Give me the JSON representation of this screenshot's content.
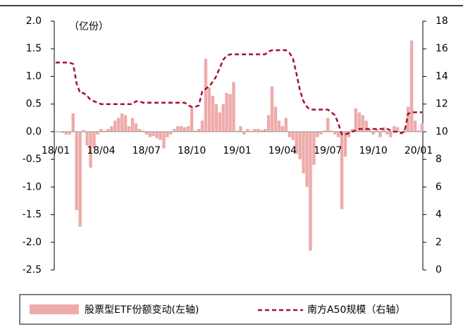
{
  "chart_data": {
    "type": "bar_line",
    "annotation": "（亿份）",
    "categories": [
      "18/01",
      null,
      null,
      null,
      null,
      null,
      null,
      null,
      null,
      null,
      null,
      null,
      null,
      "18/04",
      null,
      null,
      null,
      null,
      null,
      null,
      null,
      null,
      null,
      null,
      null,
      null,
      "18/07",
      null,
      null,
      null,
      null,
      null,
      null,
      null,
      null,
      null,
      null,
      null,
      null,
      "18/10",
      null,
      null,
      null,
      null,
      null,
      null,
      null,
      null,
      null,
      null,
      null,
      null,
      "19/01",
      null,
      null,
      null,
      null,
      null,
      null,
      null,
      null,
      null,
      null,
      null,
      null,
      "19/04",
      null,
      null,
      null,
      null,
      null,
      null,
      null,
      null,
      null,
      null,
      null,
      null,
      "19/07",
      null,
      null,
      null,
      null,
      null,
      null,
      null,
      null,
      null,
      null,
      null,
      null,
      "19/10",
      null,
      null,
      null,
      null,
      null,
      null,
      null,
      null,
      null,
      null,
      null,
      null,
      "20/01",
      null
    ],
    "series": [
      {
        "name": "股票型ETF份额变动(左轴)",
        "type": "bar",
        "color": "#eeaaaa",
        "values": [
          0,
          0,
          -0.02,
          -0.05,
          -0.05,
          0.33,
          -1.42,
          -1.72,
          0.03,
          -0.25,
          -0.65,
          -0.3,
          -0.05,
          0.05,
          0.02,
          0.05,
          0.1,
          0.2,
          0.25,
          0.33,
          0.3,
          0.1,
          0.25,
          0.15,
          0.05,
          0.02,
          -0.05,
          -0.1,
          -0.08,
          -0.12,
          -0.15,
          -0.3,
          -0.1,
          -0.05,
          0.05,
          0.1,
          0.1,
          0.08,
          0.1,
          0.45,
          0.02,
          0.05,
          0.2,
          1.32,
          0.8,
          0.65,
          0.5,
          0.35,
          0.5,
          0.7,
          0.68,
          0.9,
          0.02,
          0.1,
          -0.05,
          0.05,
          0.02,
          0.05,
          0.05,
          0.03,
          0.05,
          0.3,
          0.82,
          0.45,
          0.2,
          0.1,
          0.25,
          -0.1,
          -0.15,
          -0.4,
          -0.5,
          -0.75,
          -1.0,
          -2.15,
          -0.6,
          -0.1,
          -0.05,
          0.02,
          0.25,
          0.02,
          -0.05,
          -0.1,
          -1.4,
          -0.45,
          -0.1,
          0.05,
          0.42,
          0.35,
          0.3,
          0.2,
          0.05,
          -0.05,
          0.05,
          -0.1,
          0.08,
          -0.05,
          -0.1,
          0.1,
          0.08,
          -0.05,
          0.05,
          0.45,
          1.65,
          0.2,
          0.02,
          0.15
        ]
      },
      {
        "name": "南方A50规模（右轴）",
        "type": "line",
        "axis": "y2",
        "color": "#a3112e",
        "dashed": true,
        "values": [
          15.0,
          15.0,
          15.0,
          15.0,
          15.0,
          14.9,
          13.5,
          12.8,
          12.8,
          12.6,
          12.3,
          12.2,
          12.1,
          12.0,
          12.0,
          12.0,
          12.0,
          12.0,
          12.0,
          12.0,
          12.0,
          12.0,
          12.0,
          12.2,
          12.2,
          12.1,
          12.1,
          12.1,
          12.1,
          12.1,
          12.1,
          12.1,
          12.1,
          12.1,
          12.1,
          12.1,
          12.1,
          12.1,
          11.9,
          11.8,
          11.8,
          11.9,
          12.9,
          13.1,
          13.3,
          13.6,
          14.0,
          14.6,
          15.2,
          15.5,
          15.6,
          15.6,
          15.6,
          15.6,
          15.6,
          15.6,
          15.6,
          15.6,
          15.6,
          15.6,
          15.6,
          15.8,
          15.9,
          15.9,
          15.9,
          15.9,
          15.9,
          15.7,
          15.3,
          14.2,
          13.0,
          12.2,
          11.8,
          11.6,
          11.6,
          11.6,
          11.6,
          11.6,
          11.6,
          11.4,
          11.2,
          10.6,
          9.8,
          9.8,
          9.9,
          10.0,
          10.1,
          10.2,
          10.2,
          10.2,
          10.2,
          10.2,
          10.2,
          10.2,
          10.2,
          10.2,
          10.1,
          10.0,
          10.0,
          9.9,
          10.0,
          11.3,
          11.4,
          11.4,
          11.4,
          11.4
        ]
      }
    ],
    "ylim": [
      -2.5,
      2.0
    ],
    "yticks": [
      {
        "value": 2.0,
        "label": "2.0"
      },
      1.5,
      {
        "value": 1.0,
        "label": "1.0"
      },
      0.5,
      {
        "value": 0.0,
        "label": "0.0"
      },
      -0.5,
      {
        "value": -1.0,
        "label": "-1.0"
      },
      -1.5,
      {
        "value": -2.0,
        "label": "-2.0"
      },
      -2.5
    ],
    "y2lim": [
      0,
      18
    ],
    "y2ticks": [
      0,
      2,
      4,
      6,
      8,
      10,
      12,
      14,
      16,
      18
    ],
    "legend": "bottom"
  }
}
